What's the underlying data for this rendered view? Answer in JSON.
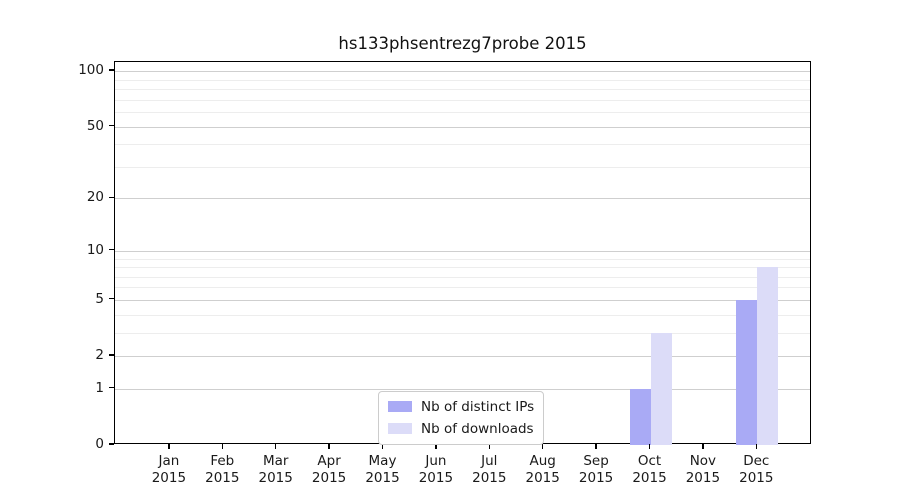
{
  "chart_data": {
    "type": "bar",
    "title": "hs133phsentrezg7probe 2015",
    "categories": [
      "Jan",
      "Feb",
      "Mar",
      "Apr",
      "May",
      "Jun",
      "Jul",
      "Aug",
      "Sep",
      "Oct",
      "Nov",
      "Dec"
    ],
    "category_second_line": "2015",
    "series": [
      {
        "name": "Nb of distinct IPs",
        "color": "#a9aaf5",
        "values": [
          0,
          0,
          0,
          0,
          0,
          0,
          0,
          0,
          0,
          1,
          0,
          5
        ]
      },
      {
        "name": "Nb of downloads",
        "color": "#dcdcf8",
        "values": [
          0,
          0,
          0,
          0,
          0,
          0,
          0,
          0,
          0,
          3,
          0,
          8
        ]
      }
    ],
    "xlabel": "",
    "ylabel": "",
    "yscale": "log1p",
    "ylim": [
      0,
      112
    ],
    "y_major_ticks": [
      0,
      1,
      2,
      5,
      10,
      20,
      50,
      100
    ],
    "y_minor_gridlines": [
      3,
      4,
      6,
      7,
      8,
      9,
      30,
      40,
      60,
      70,
      80,
      90
    ],
    "grid": "horizontal",
    "legend_position": "inside-bottom-center",
    "colors": {
      "major_grid": "#cfcfcf",
      "minor_grid": "#ededed",
      "spine": "#000000",
      "text": "#1a1a1a",
      "legend_border": "#cccccc",
      "background": "#ffffff"
    }
  }
}
